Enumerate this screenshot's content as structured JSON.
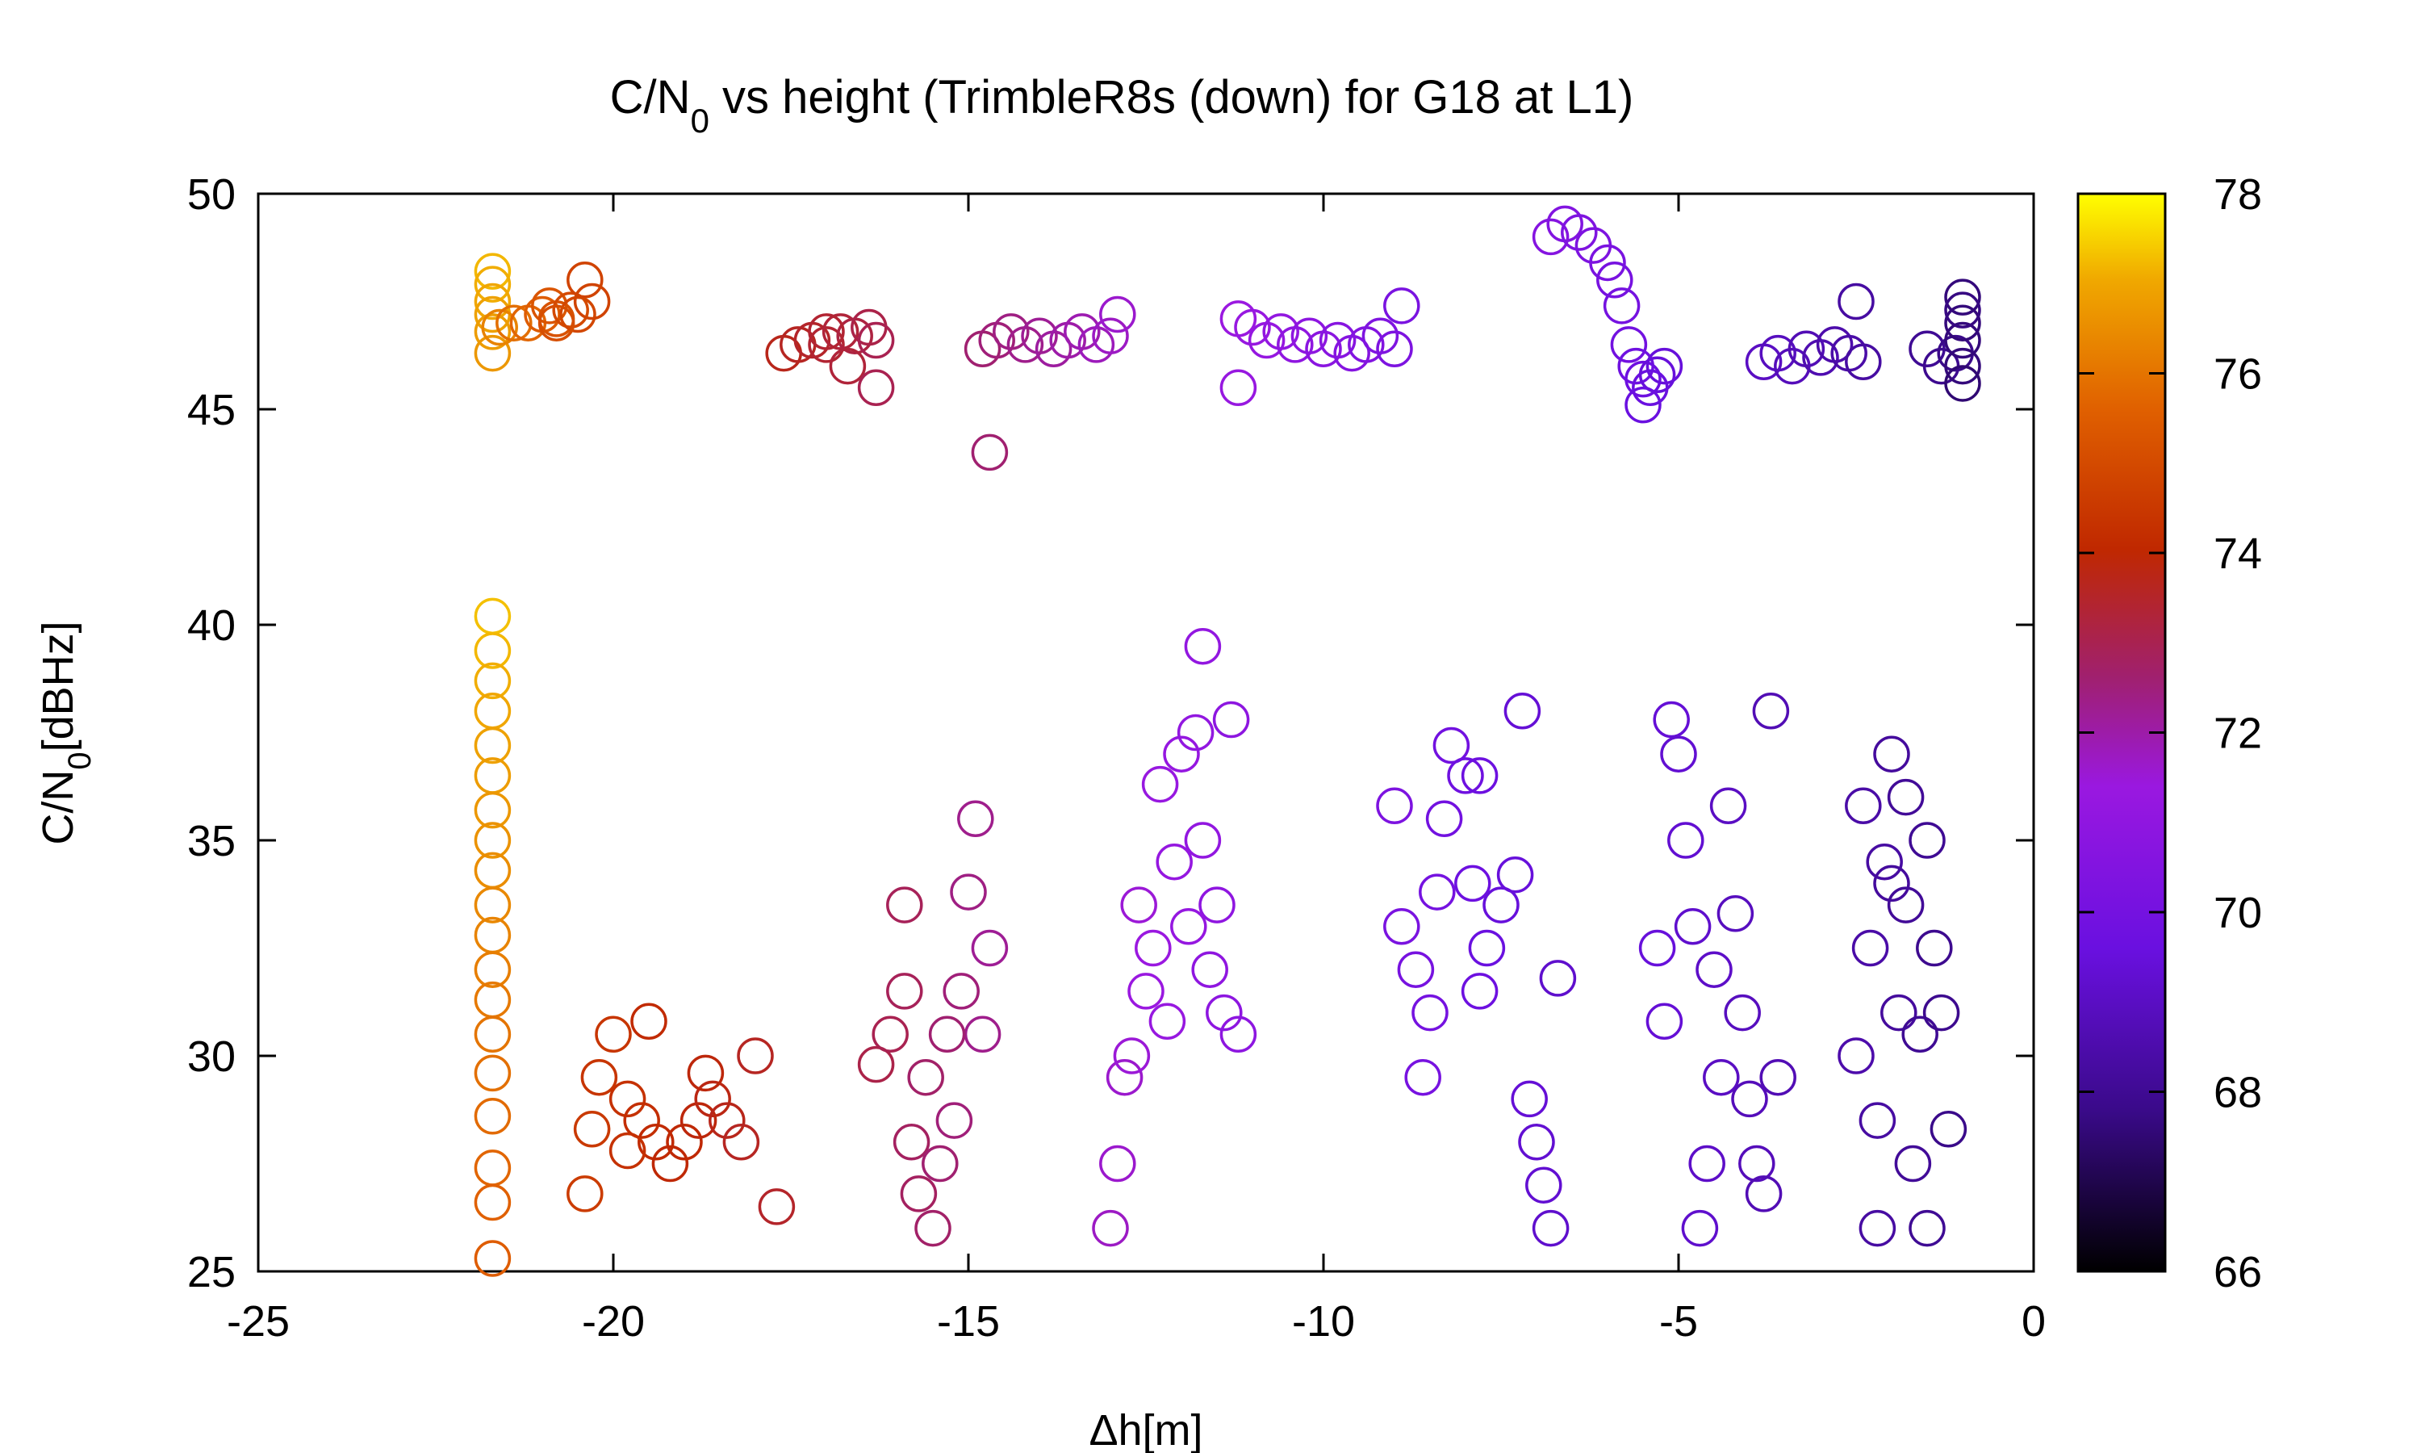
{
  "chart_data": {
    "type": "scatter",
    "title": "C/N",
    "title_sub": "0",
    "title_rest": " vs height (TrimbleR8s (down) for G18 at L1)",
    "xlabel": "Δh[m]",
    "ylabel": "C/N",
    "ylabel_sub": "0",
    "ylabel_rest": "[dBHz]",
    "xlim": [
      -25,
      0
    ],
    "ylim": [
      25,
      50
    ],
    "xticks": [
      -25,
      -20,
      -15,
      -10,
      -5,
      0
    ],
    "yticks": [
      25,
      30,
      35,
      40,
      45,
      50
    ],
    "xtick_labels": [
      "-25",
      "-20",
      "-15",
      "-10",
      "-5",
      "0"
    ],
    "ytick_labels": [
      "25",
      "30",
      "35",
      "40",
      "45",
      "50"
    ],
    "grid": false,
    "marker": "open-circle",
    "colorbar": {
      "range": [
        66,
        78
      ],
      "ticks": [
        66,
        68,
        70,
        72,
        74,
        76,
        78
      ],
      "tick_labels": [
        "66",
        "68",
        "70",
        "72",
        "74",
        "76",
        "78"
      ],
      "colors": [
        "#000000",
        "#5a00c8",
        "#9a10f0",
        "#a8207a",
        "#c83000",
        "#e86a00",
        "#f0b000",
        "#ffff00"
      ]
    },
    "points": [
      [
        -21.7,
        48.2,
        77.2
      ],
      [
        -21.7,
        47.9,
        77.1
      ],
      [
        -21.7,
        47.5,
        77.0
      ],
      [
        -21.7,
        47.2,
        76.9
      ],
      [
        -21.7,
        46.8,
        76.8
      ],
      [
        -21.7,
        46.3,
        76.7
      ],
      [
        -21.6,
        46.9,
        76.3
      ],
      [
        -21.4,
        47.0,
        75.9
      ],
      [
        -21.2,
        47.0,
        75.7
      ],
      [
        -21.0,
        47.2,
        75.5
      ],
      [
        -20.9,
        47.4,
        75.3
      ],
      [
        -20.8,
        47.1,
        75.2
      ],
      [
        -20.6,
        47.3,
        75.0
      ],
      [
        -20.5,
        47.2,
        74.9
      ],
      [
        -20.3,
        47.5,
        74.8
      ],
      [
        -20.4,
        48.0,
        74.8
      ],
      [
        -20.8,
        47.0,
        75.1
      ],
      [
        -17.6,
        46.3,
        73.7
      ],
      [
        -17.4,
        46.5,
        73.6
      ],
      [
        -17.2,
        46.6,
        73.5
      ],
      [
        -17.0,
        46.5,
        73.4
      ],
      [
        -16.8,
        46.8,
        73.3
      ],
      [
        -16.6,
        46.7,
        73.2
      ],
      [
        -16.4,
        46.9,
        73.1
      ],
      [
        -16.3,
        46.6,
        73.0
      ],
      [
        -16.7,
        46.0,
        73.3
      ],
      [
        -16.3,
        45.5,
        73.0
      ],
      [
        -17.0,
        46.8,
        73.4
      ],
      [
        -14.8,
        46.4,
        72.6
      ],
      [
        -14.6,
        46.6,
        72.5
      ],
      [
        -14.4,
        46.8,
        72.4
      ],
      [
        -14.2,
        46.5,
        72.3
      ],
      [
        -14.0,
        46.7,
        72.2
      ],
      [
        -13.8,
        46.4,
        72.1
      ],
      [
        -13.6,
        46.6,
        72.0
      ],
      [
        -13.4,
        46.8,
        71.9
      ],
      [
        -13.2,
        46.5,
        71.8
      ],
      [
        -13.0,
        46.7,
        71.7
      ],
      [
        -12.9,
        47.2,
        71.6
      ],
      [
        -14.7,
        44.0,
        72.6
      ],
      [
        -11.2,
        47.1,
        71.4
      ],
      [
        -11.0,
        46.9,
        71.3
      ],
      [
        -10.8,
        46.6,
        71.2
      ],
      [
        -10.6,
        46.8,
        71.1
      ],
      [
        -10.4,
        46.5,
        71.0
      ],
      [
        -10.2,
        46.7,
        70.9
      ],
      [
        -10.0,
        46.4,
        70.8
      ],
      [
        -9.8,
        46.6,
        70.7
      ],
      [
        -9.6,
        46.3,
        70.6
      ],
      [
        -9.4,
        46.5,
        70.5
      ],
      [
        -9.2,
        46.7,
        70.4
      ],
      [
        -9.0,
        46.4,
        70.3
      ],
      [
        -8.9,
        47.4,
        70.2
      ],
      [
        -11.2,
        45.5,
        71.3
      ],
      [
        -6.8,
        49.0,
        70.6
      ],
      [
        -6.6,
        49.3,
        70.5
      ],
      [
        -6.4,
        49.1,
        70.4
      ],
      [
        -6.2,
        48.8,
        70.3
      ],
      [
        -6.0,
        48.4,
        70.2
      ],
      [
        -5.9,
        48.0,
        70.1
      ],
      [
        -5.8,
        47.4,
        70.0
      ],
      [
        -5.7,
        46.5,
        69.9
      ],
      [
        -5.6,
        46.0,
        69.8
      ],
      [
        -5.5,
        45.7,
        69.7
      ],
      [
        -5.4,
        45.5,
        69.6
      ],
      [
        -5.3,
        45.8,
        69.5
      ],
      [
        -5.5,
        45.1,
        69.6
      ],
      [
        -5.2,
        46.0,
        69.5
      ],
      [
        -3.8,
        46.1,
        69.0
      ],
      [
        -3.6,
        46.3,
        68.9
      ],
      [
        -3.4,
        46.0,
        68.8
      ],
      [
        -3.2,
        46.4,
        68.7
      ],
      [
        -3.0,
        46.2,
        68.6
      ],
      [
        -2.8,
        46.5,
        68.5
      ],
      [
        -2.6,
        46.3,
        68.4
      ],
      [
        -2.5,
        47.5,
        68.3
      ],
      [
        -2.4,
        46.1,
        68.3
      ],
      [
        -1.5,
        46.4,
        68.0
      ],
      [
        -1.3,
        46.0,
        67.9
      ],
      [
        -1.1,
        46.3,
        67.8
      ],
      [
        -1.0,
        47.6,
        67.6
      ],
      [
        -1.0,
        47.0,
        67.6
      ],
      [
        -1.0,
        46.6,
        67.6
      ],
      [
        -1.0,
        46.0,
        67.6
      ],
      [
        -1.0,
        45.6,
        67.5
      ],
      [
        -1.0,
        47.3,
        67.7
      ],
      [
        -21.7,
        40.2,
        77.3
      ],
      [
        -21.7,
        39.4,
        77.2
      ],
      [
        -21.7,
        38.7,
        77.1
      ],
      [
        -21.7,
        38.0,
        77.0
      ],
      [
        -21.7,
        37.2,
        76.9
      ],
      [
        -21.7,
        36.5,
        76.8
      ],
      [
        -21.7,
        35.7,
        76.7
      ],
      [
        -21.7,
        35.0,
        76.6
      ],
      [
        -21.7,
        34.3,
        76.5
      ],
      [
        -21.7,
        33.5,
        76.4
      ],
      [
        -21.7,
        32.8,
        76.3
      ],
      [
        -21.7,
        32.0,
        76.2
      ],
      [
        -21.7,
        31.3,
        76.1
      ],
      [
        -21.7,
        30.5,
        76.0
      ],
      [
        -21.7,
        29.6,
        75.9
      ],
      [
        -21.7,
        28.6,
        75.8
      ],
      [
        -21.7,
        27.4,
        75.7
      ],
      [
        -21.7,
        26.6,
        75.6
      ],
      [
        -21.7,
        25.3,
        75.5
      ],
      [
        -20.4,
        26.8,
        74.6
      ],
      [
        -20.3,
        28.3,
        74.5
      ],
      [
        -20.2,
        29.5,
        74.4
      ],
      [
        -20.0,
        30.5,
        74.4
      ],
      [
        -19.8,
        29.0,
        74.3
      ],
      [
        -19.6,
        28.5,
        74.2
      ],
      [
        -19.4,
        28.0,
        74.1
      ],
      [
        -19.2,
        27.5,
        74.0
      ],
      [
        -19.0,
        28.0,
        74.0
      ],
      [
        -18.8,
        28.5,
        73.9
      ],
      [
        -18.6,
        29.0,
        73.8
      ],
      [
        -18.4,
        28.5,
        73.7
      ],
      [
        -18.2,
        28.0,
        73.6
      ],
      [
        -18.0,
        30.0,
        73.6
      ],
      [
        -19.5,
        30.8,
        74.1
      ],
      [
        -18.7,
        29.6,
        73.9
      ],
      [
        -19.8,
        27.8,
        74.3
      ],
      [
        -17.7,
        26.5,
        73.5
      ],
      [
        -16.3,
        29.8,
        73.1
      ],
      [
        -16.1,
        30.5,
        73.0
      ],
      [
        -15.9,
        31.5,
        72.9
      ],
      [
        -15.8,
        28.0,
        72.8
      ],
      [
        -15.7,
        26.8,
        72.8
      ],
      [
        -15.6,
        29.5,
        72.7
      ],
      [
        -15.5,
        26.0,
        72.7
      ],
      [
        -15.4,
        27.5,
        72.6
      ],
      [
        -15.2,
        28.5,
        72.5
      ],
      [
        -15.1,
        31.5,
        72.5
      ],
      [
        -15.0,
        33.8,
        72.4
      ],
      [
        -14.9,
        35.5,
        72.3
      ],
      [
        -14.8,
        30.5,
        72.3
      ],
      [
        -14.7,
        32.5,
        72.2
      ],
      [
        -15.9,
        33.5,
        72.9
      ],
      [
        -15.3,
        30.5,
        72.6
      ],
      [
        -13.0,
        26.0,
        71.7
      ],
      [
        -12.9,
        27.5,
        71.6
      ],
      [
        -12.8,
        29.5,
        71.6
      ],
      [
        -12.7,
        30.0,
        71.5
      ],
      [
        -12.6,
        33.5,
        71.5
      ],
      [
        -12.5,
        31.5,
        71.4
      ],
      [
        -12.4,
        32.5,
        71.4
      ],
      [
        -12.3,
        36.3,
        71.3
      ],
      [
        -12.1,
        34.5,
        71.2
      ],
      [
        -12.0,
        37.0,
        71.2
      ],
      [
        -11.8,
        37.5,
        71.1
      ],
      [
        -11.7,
        35.0,
        71.1
      ],
      [
        -11.6,
        32.0,
        71.0
      ],
      [
        -11.5,
        33.5,
        71.0
      ],
      [
        -11.4,
        31.0,
        70.9
      ],
      [
        -11.3,
        37.8,
        70.9
      ],
      [
        -11.2,
        30.5,
        70.9
      ],
      [
        -11.7,
        39.5,
        71.1
      ],
      [
        -12.2,
        30.8,
        71.3
      ],
      [
        -11.9,
        33.0,
        71.2
      ],
      [
        -9.0,
        35.8,
        70.3
      ],
      [
        -8.9,
        33.0,
        70.2
      ],
      [
        -8.7,
        32.0,
        70.1
      ],
      [
        -8.6,
        29.5,
        70.1
      ],
      [
        -8.5,
        31.0,
        70.0
      ],
      [
        -8.4,
        33.8,
        70.0
      ],
      [
        -8.3,
        35.5,
        69.9
      ],
      [
        -8.2,
        37.2,
        69.9
      ],
      [
        -8.0,
        36.5,
        69.8
      ],
      [
        -7.9,
        34.0,
        69.7
      ],
      [
        -7.8,
        31.5,
        69.7
      ],
      [
        -7.7,
        32.5,
        69.6
      ],
      [
        -7.5,
        33.5,
        69.5
      ],
      [
        -7.3,
        34.2,
        69.5
      ],
      [
        -7.2,
        38.0,
        69.4
      ],
      [
        -7.1,
        29.0,
        69.4
      ],
      [
        -7.0,
        28.0,
        69.3
      ],
      [
        -6.9,
        27.0,
        69.3
      ],
      [
        -6.8,
        26.0,
        69.2
      ],
      [
        -6.7,
        31.8,
        69.2
      ],
      [
        -7.8,
        36.5,
        69.7
      ],
      [
        -5.3,
        32.5,
        69.5
      ],
      [
        -5.2,
        30.8,
        69.4
      ],
      [
        -5.1,
        37.8,
        69.4
      ],
      [
        -5.0,
        37.0,
        69.3
      ],
      [
        -4.9,
        35.0,
        69.3
      ],
      [
        -4.8,
        33.0,
        69.2
      ],
      [
        -4.7,
        26.0,
        69.2
      ],
      [
        -4.6,
        27.5,
        69.1
      ],
      [
        -4.5,
        32.0,
        69.1
      ],
      [
        -4.4,
        29.5,
        69.0
      ],
      [
        -4.3,
        35.8,
        69.0
      ],
      [
        -4.2,
        33.3,
        68.9
      ],
      [
        -4.1,
        31.0,
        68.9
      ],
      [
        -4.0,
        29.0,
        68.8
      ],
      [
        -3.9,
        27.5,
        68.8
      ],
      [
        -3.8,
        26.8,
        68.7
      ],
      [
        -3.7,
        38.0,
        68.7
      ],
      [
        -3.6,
        29.5,
        68.7
      ],
      [
        -2.5,
        30.0,
        68.5
      ],
      [
        -2.4,
        35.8,
        68.4
      ],
      [
        -2.3,
        32.5,
        68.4
      ],
      [
        -2.2,
        28.5,
        68.3
      ],
      [
        -2.2,
        26.0,
        68.3
      ],
      [
        -2.1,
        34.5,
        68.3
      ],
      [
        -2.0,
        37.0,
        68.2
      ],
      [
        -1.9,
        31.0,
        68.2
      ],
      [
        -1.8,
        33.5,
        68.1
      ],
      [
        -1.7,
        27.5,
        68.1
      ],
      [
        -1.6,
        30.5,
        68.0
      ],
      [
        -1.5,
        35.0,
        68.0
      ],
      [
        -1.4,
        32.5,
        67.9
      ],
      [
        -1.3,
        31.0,
        67.9
      ],
      [
        -1.2,
        28.3,
        67.8
      ],
      [
        -1.5,
        26.0,
        68.0
      ],
      [
        -2.0,
        34.0,
        68.2
      ],
      [
        -1.8,
        36.0,
        68.1
      ]
    ]
  }
}
